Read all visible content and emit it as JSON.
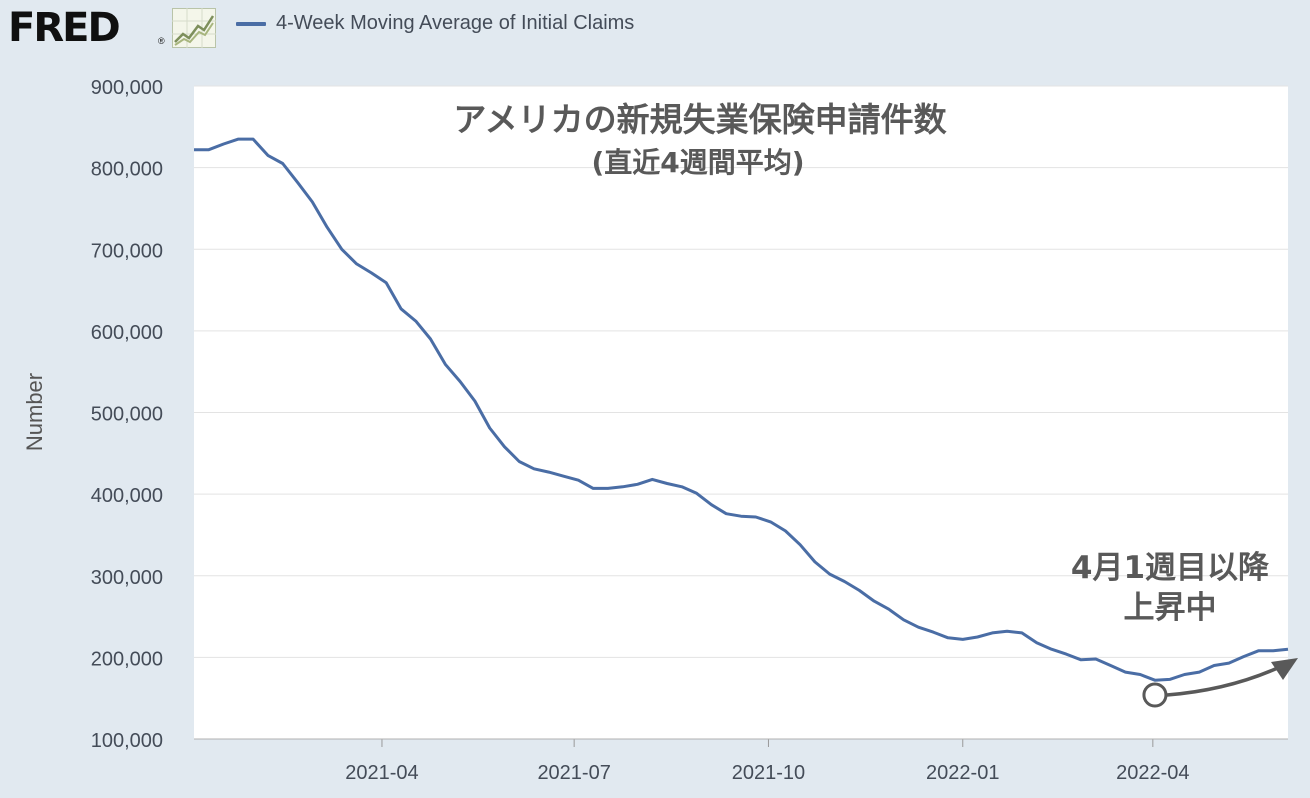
{
  "header": {
    "logo_text": "FRED",
    "logo_reg": "®",
    "logo_icon": "chart-line-icon",
    "legend_label": "4-Week Moving Average of Initial Claims"
  },
  "colors": {
    "background": "#e1e9f0",
    "plot_background": "#ffffff",
    "series": "#4a6da5",
    "gridline": "#e3e3e3",
    "annotation_text": "#595959",
    "annotation_arrow": "#595959"
  },
  "chart_data": {
    "type": "line",
    "title": "アメリカの新規失業保険申請件数",
    "subtitle": "(直近4週間平均)",
    "xlabel": "",
    "ylabel": "Number",
    "ylim": [
      100000,
      900000
    ],
    "xlim": [
      "2021-01-02",
      "2022-06-04"
    ],
    "grid": true,
    "y_ticks": [
      {
        "value": 900000,
        "label": "900,000"
      },
      {
        "value": 800000,
        "label": "800,000"
      },
      {
        "value": 700000,
        "label": "700,000"
      },
      {
        "value": 600000,
        "label": "600,000"
      },
      {
        "value": 500000,
        "label": "500,000"
      },
      {
        "value": 400000,
        "label": "400,000"
      },
      {
        "value": 300000,
        "label": "300,000"
      },
      {
        "value": 200000,
        "label": "200,000"
      },
      {
        "value": 100000,
        "label": "100,000"
      }
    ],
    "x_ticks": [
      {
        "value": "2021-04-01",
        "label": "2021-04"
      },
      {
        "value": "2021-07-01",
        "label": "2021-07"
      },
      {
        "value": "2021-10-01",
        "label": "2021-10"
      },
      {
        "value": "2022-01-01",
        "label": "2022-01"
      },
      {
        "value": "2022-04-01",
        "label": "2022-04"
      }
    ],
    "series": [
      {
        "name": "4-Week Moving Average of Initial Claims",
        "x": [
          "2021-01-02",
          "2021-01-09",
          "2021-01-16",
          "2021-01-23",
          "2021-01-30",
          "2021-02-06",
          "2021-02-13",
          "2021-02-20",
          "2021-02-27",
          "2021-03-06",
          "2021-03-13",
          "2021-03-20",
          "2021-03-27",
          "2021-04-03",
          "2021-04-10",
          "2021-04-17",
          "2021-04-24",
          "2021-05-01",
          "2021-05-08",
          "2021-05-15",
          "2021-05-22",
          "2021-05-29",
          "2021-06-05",
          "2021-06-12",
          "2021-06-19",
          "2021-06-26",
          "2021-07-03",
          "2021-07-10",
          "2021-07-17",
          "2021-07-24",
          "2021-07-31",
          "2021-08-07",
          "2021-08-14",
          "2021-08-21",
          "2021-08-28",
          "2021-09-04",
          "2021-09-11",
          "2021-09-18",
          "2021-09-25",
          "2021-10-02",
          "2021-10-09",
          "2021-10-16",
          "2021-10-23",
          "2021-10-30",
          "2021-11-06",
          "2021-11-13",
          "2021-11-20",
          "2021-11-27",
          "2021-12-04",
          "2021-12-11",
          "2021-12-18",
          "2021-12-25",
          "2022-01-01",
          "2022-01-08",
          "2022-01-15",
          "2022-01-22",
          "2022-01-29",
          "2022-02-05",
          "2022-02-12",
          "2022-02-19",
          "2022-02-26",
          "2022-03-05",
          "2022-03-12",
          "2022-03-19",
          "2022-03-26",
          "2022-04-02",
          "2022-04-09",
          "2022-04-16",
          "2022-04-23",
          "2022-04-30",
          "2022-05-07",
          "2022-05-14",
          "2022-05-21",
          "2022-05-28",
          "2022-06-04"
        ],
        "values": [
          822000,
          822000,
          829000,
          835000,
          835000,
          815000,
          805000,
          782000,
          758000,
          727000,
          700000,
          682000,
          671000,
          659000,
          627000,
          612000,
          590000,
          559000,
          538000,
          514000,
          481000,
          458000,
          440000,
          431000,
          427000,
          422000,
          417000,
          407000,
          407000,
          409000,
          412000,
          418000,
          413000,
          409000,
          401000,
          387000,
          376000,
          373000,
          372000,
          366000,
          355000,
          338000,
          317000,
          302000,
          293000,
          282000,
          269000,
          259000,
          246000,
          237000,
          231000,
          224000,
          222000,
          225000,
          230000,
          232000,
          230000,
          218000,
          210000,
          204000,
          197000,
          198000,
          190000,
          182000,
          179000,
          172000,
          173000,
          179000,
          182000,
          190000,
          193000,
          201000,
          208000,
          208000,
          210000
        ]
      }
    ],
    "annotations": [
      {
        "lines": [
          "4月1週目以降",
          "上昇中"
        ],
        "target_x": "2022-04-02"
      }
    ]
  }
}
